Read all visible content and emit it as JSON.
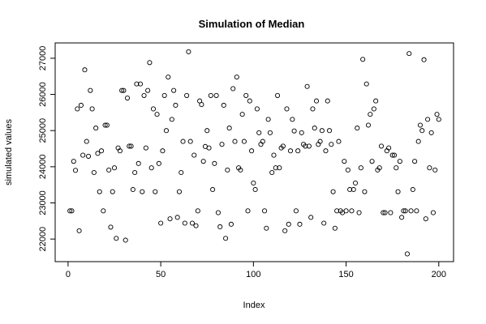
{
  "chart_data": {
    "type": "scatter",
    "title": "Simulation of Median",
    "xlabel": "Index",
    "ylabel": "simulated values",
    "xlim": [
      1,
      200
    ],
    "ylim": [
      21600,
      27200
    ],
    "x_ticks": [
      0,
      50,
      100,
      150,
      200
    ],
    "y_ticks": [
      22000,
      23000,
      24000,
      25000,
      26000,
      27000
    ],
    "grid": false,
    "legend": "none",
    "x": [
      1,
      2,
      3,
      4,
      5,
      6,
      7,
      8,
      9,
      10,
      11,
      12,
      13,
      14,
      15,
      16,
      17,
      18,
      19,
      20,
      21,
      22,
      23,
      24,
      25,
      26,
      27,
      28,
      29,
      30,
      31,
      32,
      33,
      34,
      35,
      36,
      37,
      38,
      39,
      40,
      41,
      42,
      43,
      44,
      45,
      46,
      47,
      48,
      49,
      50,
      51,
      52,
      53,
      54,
      55,
      56,
      57,
      58,
      59,
      60,
      61,
      62,
      63,
      64,
      65,
      66,
      67,
      68,
      69,
      70,
      71,
      72,
      73,
      74,
      75,
      76,
      77,
      78,
      79,
      80,
      81,
      82,
      83,
      84,
      85,
      86,
      87,
      88,
      89,
      90,
      91,
      92,
      93,
      94,
      95,
      96,
      97,
      98,
      99,
      100,
      101,
      102,
      103,
      104,
      105,
      106,
      107,
      108,
      109,
      110,
      111,
      112,
      113,
      114,
      115,
      116,
      117,
      118,
      119,
      120,
      121,
      122,
      123,
      124,
      125,
      126,
      127,
      128,
      129,
      130,
      131,
      132,
      133,
      134,
      135,
      136,
      137,
      138,
      139,
      140,
      141,
      142,
      143,
      144,
      145,
      146,
      147,
      148,
      149,
      150,
      151,
      152,
      153,
      154,
      155,
      156,
      157,
      158,
      159,
      160,
      161,
      162,
      163,
      164,
      165,
      166,
      167,
      168,
      169,
      170,
      171,
      172,
      173,
      174,
      175,
      176,
      177,
      178,
      179,
      180,
      181,
      182,
      183,
      184,
      185,
      186,
      187,
      188,
      189,
      190,
      191,
      192,
      193,
      194,
      195,
      196,
      197,
      198,
      199,
      200
    ],
    "y": [
      22780,
      22780,
      24150,
      23900,
      25600,
      22230,
      25700,
      24320,
      26680,
      24700,
      24290,
      26110,
      25600,
      23840,
      25070,
      24370,
      23310,
      24440,
      22780,
      25150,
      25150,
      23910,
      22330,
      23310,
      23970,
      22020,
      24520,
      24440,
      26110,
      26110,
      21970,
      25900,
      24570,
      24570,
      23370,
      23840,
      26290,
      24090,
      26290,
      23310,
      25970,
      24520,
      26110,
      26880,
      23970,
      25600,
      23310,
      25450,
      24090,
      22440,
      24440,
      25970,
      25000,
      26480,
      22560,
      25310,
      26110,
      25700,
      22600,
      23310,
      23840,
      24700,
      22440,
      25970,
      27180,
      24700,
      22440,
      24320,
      22370,
      22780,
      25820,
      25720,
      24150,
      24560,
      25000,
      24520,
      25970,
      23370,
      24090,
      25970,
      22730,
      22340,
      24620,
      25700,
      22020,
      23910,
      25070,
      22410,
      26160,
      24700,
      26480,
      23970,
      23910,
      25450,
      24700,
      25970,
      22780,
      25820,
      24440,
      23550,
      23370,
      25600,
      24940,
      24620,
      24700,
      22780,
      22300,
      25310,
      24940,
      23840,
      24320,
      23970,
      25970,
      23970,
      24520,
      24570,
      22230,
      25600,
      22410,
      24440,
      25310,
      24990,
      22780,
      24440,
      22410,
      24940,
      24620,
      24570,
      26220,
      24570,
      22600,
      25600,
      25070,
      25820,
      24620,
      24700,
      25000,
      22440,
      24440,
      25820,
      25000,
      24620,
      23310,
      22300,
      22780,
      24700,
      22780,
      22730,
      24150,
      22780,
      23910,
      23370,
      22780,
      23370,
      23550,
      25070,
      22730,
      23970,
      26970,
      23310,
      26290,
      25150,
      25450,
      24150,
      25600,
      25820,
      23910,
      23970,
      24570,
      22730,
      22730,
      24440,
      24520,
      22730,
      24320,
      24320,
      23970,
      23310,
      24150,
      22600,
      22780,
      22780,
      21590,
      27130,
      22780,
      23370,
      24150,
      22780,
      24700,
      25150,
      25000,
      26960,
      22560,
      25310,
      23970,
      24940,
      22730,
      23910,
      25450,
      25310
    ]
  }
}
